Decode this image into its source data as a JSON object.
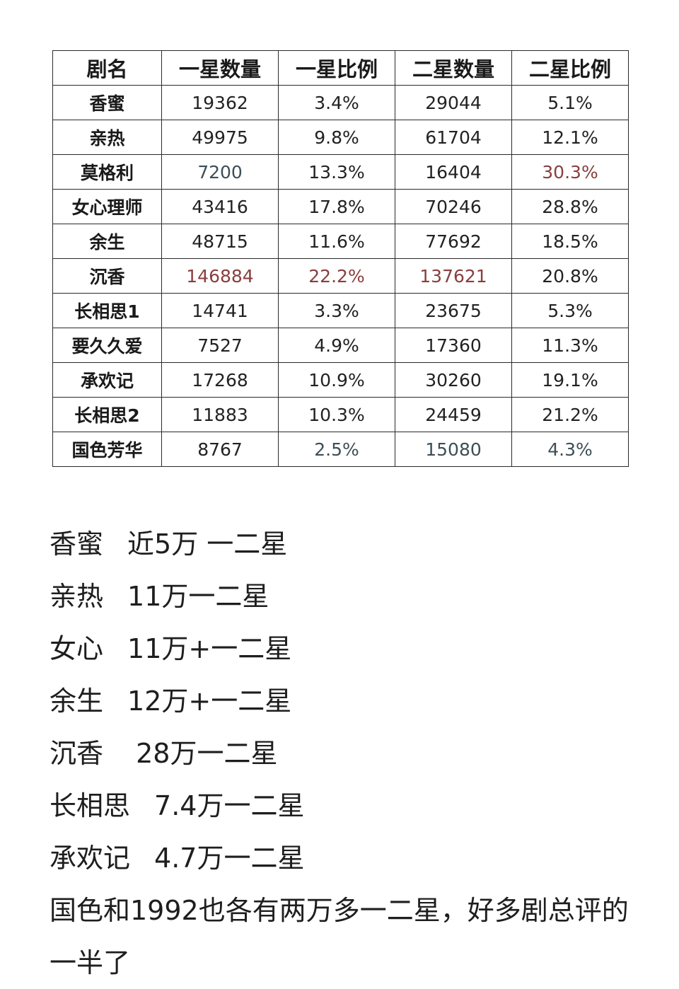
{
  "table": {
    "headers": [
      "剧名",
      "一星数量",
      "一星比例",
      "二星数量",
      "二星比例"
    ],
    "rows": [
      {
        "name": "香蜜",
        "one_star_count": "19362",
        "one_star_ratio": "3.4%",
        "two_star_count": "29044",
        "two_star_ratio": "5.1%"
      },
      {
        "name": "亲热",
        "one_star_count": "49975",
        "one_star_ratio": "9.8%",
        "two_star_count": "61704",
        "two_star_ratio": "12.1%"
      },
      {
        "name": "莫格利",
        "one_star_count": "7200",
        "one_star_ratio": "13.3%",
        "two_star_count": "16404",
        "two_star_ratio": "30.3%"
      },
      {
        "name": "女心理师",
        "one_star_count": "43416",
        "one_star_ratio": "17.8%",
        "two_star_count": "70246",
        "two_star_ratio": "28.8%"
      },
      {
        "name": "余生",
        "one_star_count": "48715",
        "one_star_ratio": "11.6%",
        "two_star_count": "77692",
        "two_star_ratio": "18.5%"
      },
      {
        "name": "沉香",
        "one_star_count": "146884",
        "one_star_ratio": "22.2%",
        "two_star_count": "137621",
        "two_star_ratio": "20.8%"
      },
      {
        "name": "长相思1",
        "one_star_count": "14741",
        "one_star_ratio": "3.3%",
        "two_star_count": "23675",
        "two_star_ratio": "5.3%"
      },
      {
        "name": "要久久爱",
        "one_star_count": "7527",
        "one_star_ratio": "4.9%",
        "two_star_count": "17360",
        "two_star_ratio": "11.3%"
      },
      {
        "name": "承欢记",
        "one_star_count": "17268",
        "one_star_ratio": "10.9%",
        "two_star_count": "30260",
        "two_star_ratio": "19.1%"
      },
      {
        "name": "长相思2",
        "one_star_count": "11883",
        "one_star_ratio": "10.3%",
        "two_star_count": "24459",
        "two_star_ratio": "21.2%"
      },
      {
        "name": "国色芳华",
        "one_star_count": "8767",
        "one_star_ratio": "2.5%",
        "two_star_count": "15080",
        "two_star_ratio": "4.3%"
      }
    ]
  },
  "colors": {
    "highlight_red": "#8a3e3e",
    "highlight_grey": "#3d4f56"
  },
  "notes": {
    "lines": [
      {
        "label": "香蜜",
        "amount": "近5万 一二星"
      },
      {
        "label": "亲热",
        "amount": "11万一二星"
      },
      {
        "label": "女心",
        "amount": "11万+一二星"
      },
      {
        "label": "余生",
        "amount": "12万+一二星"
      },
      {
        "label": "沉香",
        "amount": " 28万一二星"
      },
      {
        "label": "长相思",
        "amount": "7.4万一二星"
      },
      {
        "label": "承欢记",
        "amount": "4.7万一二星"
      }
    ],
    "paragraph": "国色和1992也各有两万多一二星，好多剧总评的一半了"
  }
}
